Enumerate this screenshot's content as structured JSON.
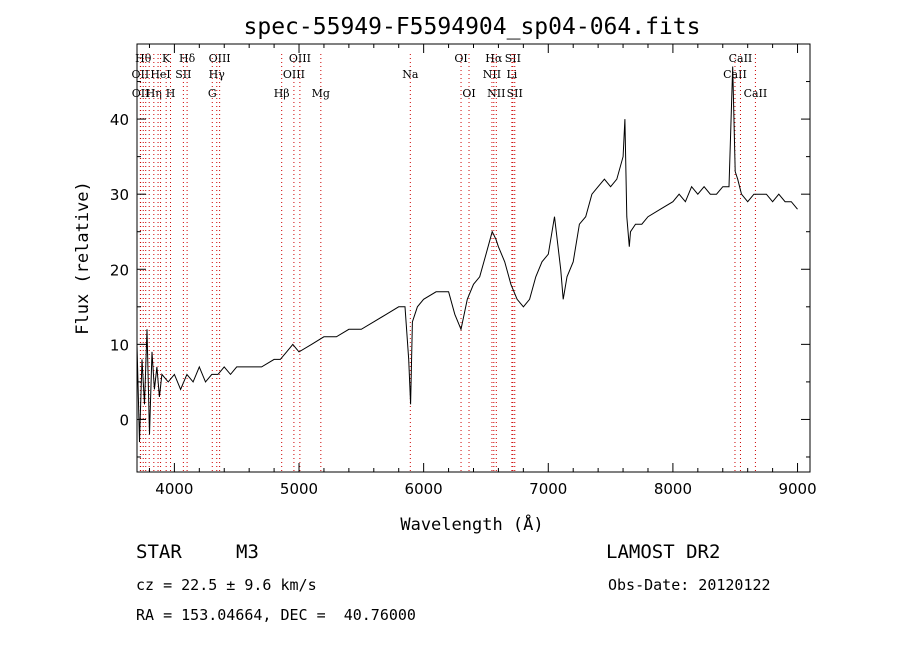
{
  "chart_data": {
    "type": "line",
    "title": "spec-55949-F5594904_sp04-064.fits",
    "xlabel": "Wavelength (Å)",
    "ylabel": "Flux (relative)",
    "xlim": [
      3700,
      9100
    ],
    "ylim": [
      -7,
      50
    ],
    "xticks": [
      4000,
      5000,
      6000,
      7000,
      8000,
      9000
    ],
    "yticks": [
      0,
      10,
      20,
      30,
      40
    ],
    "grid": false,
    "series": [
      {
        "color": "#000000",
        "x": [
          3700,
          3720,
          3740,
          3760,
          3780,
          3800,
          3820,
          3840,
          3860,
          3880,
          3900,
          3950,
          4000,
          4050,
          4100,
          4150,
          4200,
          4250,
          4300,
          4350,
          4400,
          4450,
          4500,
          4600,
          4700,
          4800,
          4850,
          4900,
          4950,
          5000,
          5100,
          5200,
          5300,
          5400,
          5500,
          5600,
          5700,
          5800,
          5850,
          5880,
          5895,
          5910,
          5950,
          6000,
          6100,
          6200,
          6250,
          6300,
          6350,
          6400,
          6450,
          6500,
          6550,
          6580,
          6600,
          6650,
          6700,
          6750,
          6800,
          6850,
          6900,
          6950,
          7000,
          7050,
          7100,
          7120,
          7150,
          7200,
          7250,
          7300,
          7350,
          7400,
          7450,
          7500,
          7550,
          7600,
          7615,
          7630,
          7650,
          7660,
          7700,
          7750,
          7800,
          7900,
          8000,
          8050,
          8100,
          8150,
          8200,
          8250,
          8300,
          8350,
          8400,
          8450,
          8480,
          8500,
          8520,
          8550,
          8600,
          8650,
          8700,
          8750,
          8800,
          8850,
          8900,
          8950,
          9000
        ],
        "y": [
          10,
          -3,
          8,
          2,
          12,
          -2,
          9,
          4,
          7,
          3,
          6,
          5,
          6,
          4,
          6,
          5,
          7,
          5,
          6,
          6,
          7,
          6,
          7,
          7,
          7,
          8,
          8,
          9,
          10,
          9,
          10,
          11,
          11,
          12,
          12,
          13,
          14,
          15,
          15,
          8,
          2,
          13,
          15,
          16,
          17,
          17,
          14,
          12,
          16,
          18,
          19,
          22,
          25,
          24,
          23,
          21,
          18,
          16,
          15,
          16,
          19,
          21,
          22,
          27,
          20,
          16,
          19,
          21,
          26,
          27,
          30,
          31,
          32,
          31,
          32,
          35,
          40,
          27,
          23,
          25,
          26,
          26,
          27,
          28,
          29,
          30,
          29,
          31,
          30,
          31,
          30,
          30,
          31,
          31,
          47,
          33,
          32,
          30,
          29,
          30,
          30,
          30,
          29,
          30,
          29,
          29,
          28
        ]
      }
    ],
    "line_markers": [
      {
        "wavelength": 3750,
        "label": "Hθ",
        "row": 1
      },
      {
        "wavelength": 3727,
        "label": "OII",
        "row": 2
      },
      {
        "wavelength": 3729,
        "label": "OII",
        "row": 3
      },
      {
        "wavelength": 3770,
        "label": "",
        "row": 0
      },
      {
        "wavelength": 3798,
        "label": "",
        "row": 0
      },
      {
        "wavelength": 3835,
        "label": "Hη",
        "row": 3
      },
      {
        "wavelength": 3869,
        "label": "",
        "row": 0
      },
      {
        "wavelength": 3889,
        "label": "HeI",
        "row": 2
      },
      {
        "wavelength": 3934,
        "label": "K",
        "row": 1
      },
      {
        "wavelength": 3969,
        "label": "H",
        "row": 3
      },
      {
        "wavelength": 4072,
        "label": "SII",
        "row": 2
      },
      {
        "wavelength": 4102,
        "label": "Hδ",
        "row": 1
      },
      {
        "wavelength": 4304,
        "label": "G",
        "row": 3
      },
      {
        "wavelength": 4340,
        "label": "Hγ",
        "row": 2
      },
      {
        "wavelength": 4363,
        "label": "OIII",
        "row": 1
      },
      {
        "wavelength": 4861,
        "label": "Hβ",
        "row": 3
      },
      {
        "wavelength": 4959,
        "label": "OIII",
        "row": 2
      },
      {
        "wavelength": 5007,
        "label": "OIII",
        "row": 1
      },
      {
        "wavelength": 5175,
        "label": "Mg",
        "row": 3
      },
      {
        "wavelength": 5893,
        "label": "Na",
        "row": 2
      },
      {
        "wavelength": 6300,
        "label": "OI",
        "row": 1
      },
      {
        "wavelength": 6364,
        "label": "OI",
        "row": 3
      },
      {
        "wavelength": 6548,
        "label": "NII",
        "row": 2
      },
      {
        "wavelength": 6563,
        "label": "Hα",
        "row": 1
      },
      {
        "wavelength": 6583,
        "label": "NII",
        "row": 3
      },
      {
        "wavelength": 6708,
        "label": "Li",
        "row": 2
      },
      {
        "wavelength": 6716,
        "label": "SII",
        "row": 1
      },
      {
        "wavelength": 6731,
        "label": "SII",
        "row": 3
      },
      {
        "wavelength": 8498,
        "label": "CaII",
        "row": 2
      },
      {
        "wavelength": 8542,
        "label": "CaII",
        "row": 1
      },
      {
        "wavelength": 8662,
        "label": "CaII",
        "row": 3
      }
    ]
  },
  "info": {
    "object_class": "STAR",
    "subclass": "M3",
    "survey": "LAMOST DR2",
    "redshift": "cz = 22.5 ± 9.6 km/s",
    "obs_date": "Obs-Date: 20120122",
    "coords": "RA = 153.04664, DEC =  40.76000"
  },
  "colors": {
    "line_marker": "#cc0000",
    "axis": "#000000",
    "spectrum": "#000000"
  }
}
